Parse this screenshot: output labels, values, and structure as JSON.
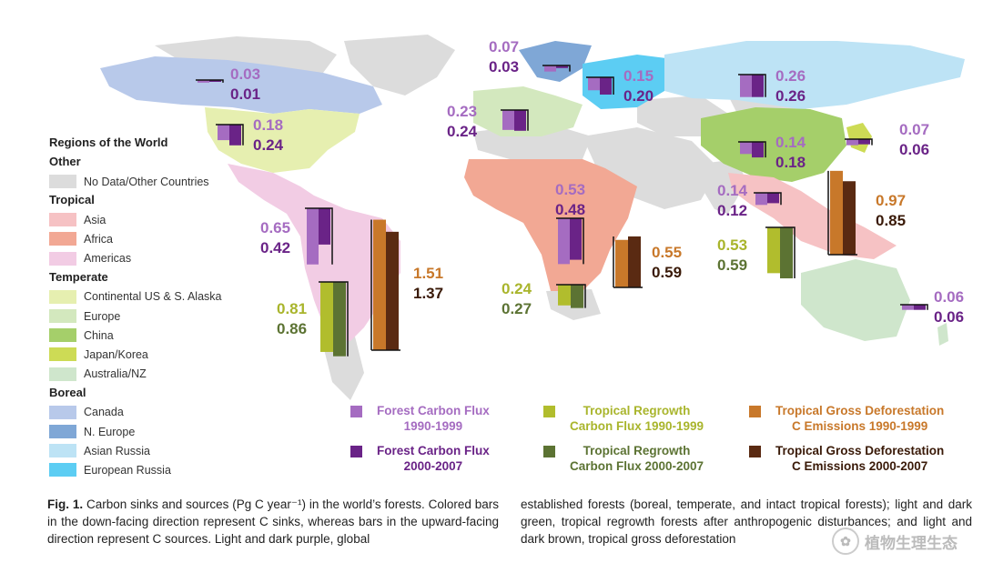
{
  "legend": {
    "title": "Regions of the World",
    "groups": [
      {
        "name": "Other",
        "items": [
          {
            "label": "No Data/Other Countries",
            "color": "#dcdcdc"
          }
        ]
      },
      {
        "name": "Tropical",
        "items": [
          {
            "label": "Asia",
            "color": "#f6c2c4"
          },
          {
            "label": "Africa",
            "color": "#f2a894"
          },
          {
            "label": "Americas",
            "color": "#f2cce4"
          }
        ]
      },
      {
        "name": "Temperate",
        "items": [
          {
            "label": "Continental US & S. Alaska",
            "color": "#e6efb0"
          },
          {
            "label": "Europe",
            "color": "#d3e8be"
          },
          {
            "label": "China",
            "color": "#a5cf6a"
          },
          {
            "label": "Japan/Korea",
            "color": "#cddb55"
          },
          {
            "label": "Australia/NZ",
            "color": "#cfe6cc"
          }
        ]
      },
      {
        "name": "Boreal",
        "items": [
          {
            "label": "Canada",
            "color": "#b8c9ea"
          },
          {
            "label": "N. Europe",
            "color": "#7fa7d6"
          },
          {
            "label": "Asian Russia",
            "color": "#bde3f5"
          },
          {
            "label": "European Russia",
            "color": "#5ccdf3"
          }
        ]
      }
    ]
  },
  "colors": {
    "forest_1990": "#a56cc1",
    "forest_2000": "#6a2387",
    "regrowth_1990": "#b1bd2d",
    "regrowth_2000": "#5c7333",
    "deforest_1990": "#c8782a",
    "deforest_2000": "#5a2a12"
  },
  "bar_legend": [
    {
      "label": "Forest Carbon Flux\n1990-1999",
      "color": "#a56cc1",
      "text_color": "#a56cc1"
    },
    {
      "label": "Forest Carbon Flux\n2000-2007",
      "color": "#6a2387",
      "text_color": "#6a2387"
    },
    {
      "label": "Tropical Regrowth\nCarbon Flux 1990-1999",
      "color": "#b1bd2d",
      "text_color": "#a9b52c"
    },
    {
      "label": "Tropical Regrowth\nCarbon Flux 2000-2007",
      "color": "#5c7333",
      "text_color": "#5c7333"
    },
    {
      "label": "Tropical Gross Deforestation\nC Emissions 1990-1999",
      "color": "#c8782a",
      "text_color": "#c8782a"
    },
    {
      "label": "Tropical Gross Deforestation\nC Emissions 2000-2007",
      "color": "#5a2a12",
      "text_color": "#3a1a08"
    }
  ],
  "chart_data": {
    "type": "bar",
    "unit": "Pg C year-1",
    "regions": [
      {
        "region": "Canada",
        "kind": "forest",
        "direction": "sink",
        "v1990": 0.03,
        "v2000": 0.01
      },
      {
        "region": "Continental US & S. Alaska",
        "kind": "forest",
        "direction": "sink",
        "v1990": 0.18,
        "v2000": 0.24
      },
      {
        "region": "Europe",
        "kind": "forest",
        "direction": "sink",
        "v1990": 0.23,
        "v2000": 0.24
      },
      {
        "region": "N. Europe",
        "kind": "forest",
        "direction": "sink",
        "v1990": 0.07,
        "v2000": 0.03
      },
      {
        "region": "European Russia",
        "kind": "forest",
        "direction": "sink",
        "v1990": 0.15,
        "v2000": 0.2
      },
      {
        "region": "Asian Russia",
        "kind": "forest",
        "direction": "sink",
        "v1990": 0.26,
        "v2000": 0.26
      },
      {
        "region": "China",
        "kind": "forest",
        "direction": "sink",
        "v1990": 0.14,
        "v2000": 0.18
      },
      {
        "region": "Japan/Korea",
        "kind": "forest",
        "direction": "sink",
        "v1990": 0.07,
        "v2000": 0.06
      },
      {
        "region": "Tropical Asia",
        "kind": "forest",
        "direction": "sink",
        "v1990": 0.14,
        "v2000": 0.12
      },
      {
        "region": "Tropical Asia",
        "kind": "deforest",
        "direction": "source",
        "v1990": 0.97,
        "v2000": 0.85
      },
      {
        "region": "Tropical Asia",
        "kind": "regrowth",
        "direction": "sink",
        "v1990": 0.53,
        "v2000": 0.59
      },
      {
        "region": "Tropical Americas",
        "kind": "forest",
        "direction": "sink",
        "v1990": 0.65,
        "v2000": 0.42
      },
      {
        "region": "Tropical Americas",
        "kind": "deforest",
        "direction": "source",
        "v1990": 1.51,
        "v2000": 1.37
      },
      {
        "region": "Tropical Americas",
        "kind": "regrowth",
        "direction": "sink",
        "v1990": 0.81,
        "v2000": 0.86
      },
      {
        "region": "Tropical Africa",
        "kind": "forest",
        "direction": "sink",
        "v1990": 0.53,
        "v2000": 0.48
      },
      {
        "region": "Tropical Africa",
        "kind": "deforest",
        "direction": "source",
        "v1990": 0.55,
        "v2000": 0.59
      },
      {
        "region": "Tropical Africa",
        "kind": "regrowth",
        "direction": "sink",
        "v1990": 0.24,
        "v2000": 0.27
      },
      {
        "region": "Australia/NZ",
        "kind": "forest",
        "direction": "sink",
        "v1990": 0.06,
        "v2000": 0.06
      }
    ]
  },
  "caption": {
    "fig_label": "Fig. 1.",
    "left_text": "Carbon sinks and sources (Pg C year⁻¹) in the world’s forests. Colored bars in the down-facing direction represent C sinks, whereas bars in the upward-facing direction represent C sources. Light and dark purple, global",
    "right_text": "established forests (boreal, temperate, and intact tropical forests); light and dark green, tropical regrowth forests after anthropogenic disturbances; and light and dark brown, tropical gross deforestation"
  },
  "watermark": "植物生理生态"
}
